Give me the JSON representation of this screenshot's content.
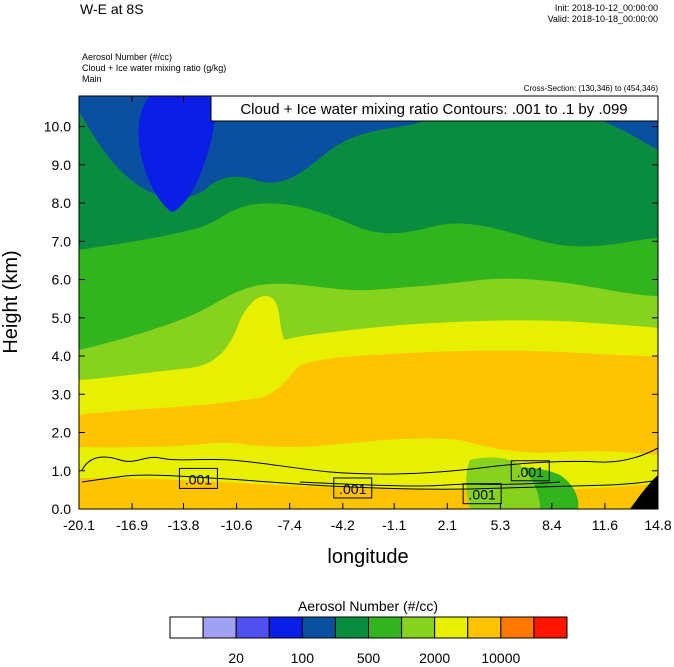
{
  "header": {
    "title": "W-E at 8S",
    "init": "Init: 2018-10-12_00:00:00",
    "valid": "Valid: 2018-10-18_00:00:00",
    "field1": "Aerosol Number   (#/cc)",
    "field2": "Cloud + Ice water mixing ratio   (g/kg)",
    "field3": "Main",
    "cross_section": "Cross-Section: (130,346) to (454,346)"
  },
  "chart_data": {
    "type": "heatmap",
    "title": "Cloud + Ice water mixing ratio Contours: .001 to .1 by .099",
    "xlabel": "longitude",
    "ylabel": "Height (km)",
    "xlim": [
      -20.1,
      14.8
    ],
    "ylim": [
      0.0,
      10.8
    ],
    "x_ticks": [
      "-20.1",
      "-16.9",
      "-13.8",
      "-10.6",
      "-7.4",
      "-4.2",
      "-1.1",
      "2.1",
      "5.3",
      "8.4",
      "11.6",
      "14.8"
    ],
    "y_ticks": [
      "0.0",
      "1.0",
      "2.0",
      "3.0",
      "4.0",
      "5.0",
      "6.0",
      "7.0",
      "8.0",
      "9.0",
      "10.0"
    ],
    "contour_labels": [
      {
        "text": ".001",
        "x": -12.9,
        "y": 0.8
      },
      {
        "text": ".001",
        "x": -3.6,
        "y": 0.55
      },
      {
        "text": ".001",
        "x": 4.2,
        "y": 0.4
      },
      {
        "text": ".001",
        "x": 7.1,
        "y": 1.0
      }
    ],
    "colorbar": {
      "label": "Aerosol Number  (#/cc)",
      "colors": [
        "#ffffff",
        "#a0a0f5",
        "#5050f0",
        "#0a1ee6",
        "#0b4fa0",
        "#0a8c40",
        "#32b41e",
        "#87d21e",
        "#e6f000",
        "#ffc300",
        "#ff7800",
        "#ff1400"
      ],
      "tick_labels": [
        "20",
        "100",
        "500",
        "2000",
        "10000"
      ]
    }
  }
}
